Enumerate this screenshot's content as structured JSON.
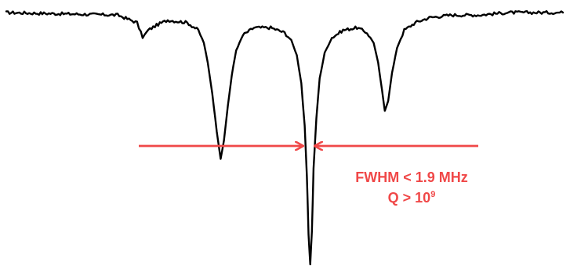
{
  "chart_data": {
    "type": "line",
    "title": "",
    "xlabel": "",
    "ylabel": "",
    "grid": false,
    "axes_visible": false,
    "series": [
      {
        "color": "#000000",
        "points": [
          [
            0.0,
            1.0
          ],
          [
            0.2,
            0.99
          ],
          [
            0.235,
            0.96
          ],
          [
            0.245,
            0.9
          ],
          [
            0.255,
            0.93
          ],
          [
            0.27,
            0.95
          ],
          [
            0.29,
            0.97
          ],
          [
            0.325,
            0.96
          ],
          [
            0.345,
            0.93
          ],
          [
            0.355,
            0.88
          ],
          [
            0.362,
            0.8
          ],
          [
            0.37,
            0.68
          ],
          [
            0.378,
            0.53
          ],
          [
            0.385,
            0.42
          ],
          [
            0.391,
            0.49
          ],
          [
            0.398,
            0.63
          ],
          [
            0.405,
            0.75
          ],
          [
            0.413,
            0.85
          ],
          [
            0.425,
            0.91
          ],
          [
            0.445,
            0.94
          ],
          [
            0.475,
            0.94
          ],
          [
            0.5,
            0.92
          ],
          [
            0.512,
            0.89
          ],
          [
            0.522,
            0.83
          ],
          [
            0.53,
            0.72
          ],
          [
            0.536,
            0.55
          ],
          [
            0.54,
            0.35
          ],
          [
            0.543,
            0.12
          ],
          [
            0.546,
            0.0
          ],
          [
            0.549,
            0.13
          ],
          [
            0.552,
            0.38
          ],
          [
            0.557,
            0.58
          ],
          [
            0.563,
            0.74
          ],
          [
            0.572,
            0.84
          ],
          [
            0.585,
            0.9
          ],
          [
            0.605,
            0.93
          ],
          [
            0.63,
            0.94
          ],
          [
            0.648,
            0.92
          ],
          [
            0.66,
            0.88
          ],
          [
            0.668,
            0.8
          ],
          [
            0.675,
            0.69
          ],
          [
            0.68,
            0.61
          ],
          [
            0.686,
            0.65
          ],
          [
            0.693,
            0.76
          ],
          [
            0.702,
            0.86
          ],
          [
            0.715,
            0.93
          ],
          [
            0.735,
            0.96
          ],
          [
            0.76,
            0.98
          ],
          [
            0.8,
            0.99
          ],
          [
            0.85,
            0.99
          ],
          [
            0.9,
            1.0
          ],
          [
            0.95,
            1.0
          ],
          [
            1.0,
            1.0
          ]
        ]
      }
    ],
    "annotation": {
      "line1": "FWHM < 1.9 MHz",
      "line2_base": "Q > 10",
      "line2_exp": "9",
      "color": "#f04848"
    }
  }
}
